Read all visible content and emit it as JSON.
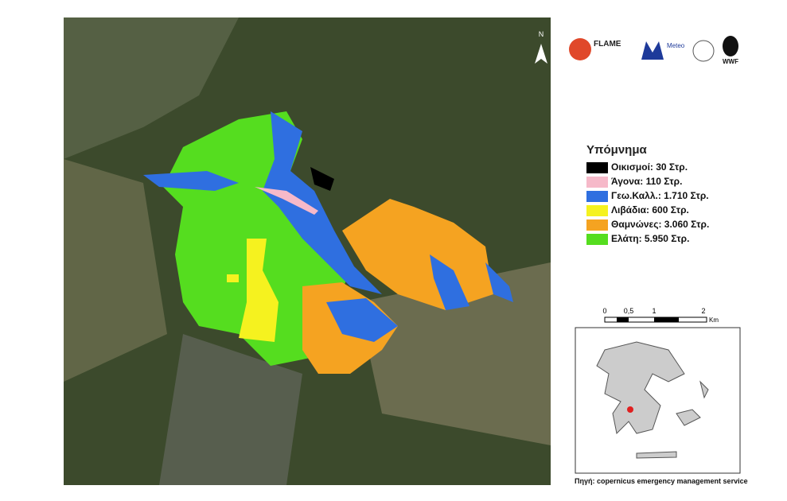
{
  "logos": {
    "flame": "FLAME",
    "meteo": "Meteo",
    "wwf": "WWF"
  },
  "map": {
    "north": "N"
  },
  "legend": {
    "title": "Υπόμνημα",
    "items": [
      {
        "label": "Οικισμοί: 30 Στρ.",
        "color": "#000000"
      },
      {
        "label": "Άγονα: 110 Στρ.",
        "color": "#f6b9c9"
      },
      {
        "label": "Γεω.Καλλ.: 1.710 Στρ.",
        "color": "#2f6fe0"
      },
      {
        "label": "Λιβάδια: 600 Στρ.",
        "color": "#f5f21f"
      },
      {
        "label": "Θαμνώνες: 3.060 Στρ.",
        "color": "#f5a321"
      },
      {
        "label": "Ελάτη: 5.950 Στρ.",
        "color": "#55dd1f"
      }
    ]
  },
  "scale": {
    "labels": [
      "0",
      "0,5",
      "1",
      "2"
    ],
    "unit": "Km"
  },
  "source": "Πηγή: copernicus emergency management service"
}
